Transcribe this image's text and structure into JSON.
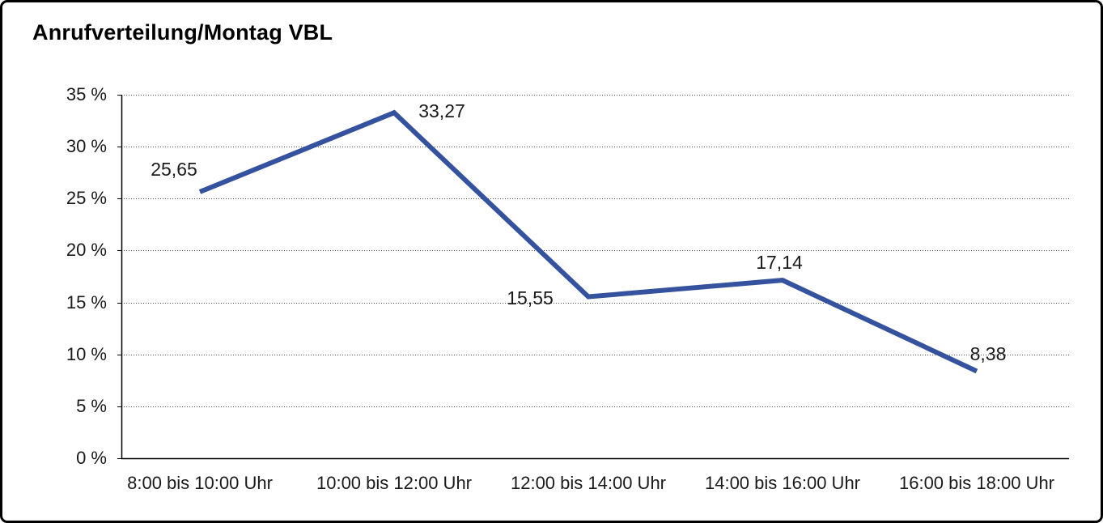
{
  "frame": {
    "title": "Anrufverteilung/Montag VBL"
  },
  "colors": {
    "line": "#35529E",
    "grid_dots": "#4d4d4d",
    "axis": "#000000",
    "text": "#1a1a1a",
    "frame_border": "#000000",
    "background": "#ffffff"
  },
  "chart_data": {
    "type": "line",
    "title": "Anrufverteilung/Montag VBL",
    "categories": [
      "8:00 bis 10:00 Uhr",
      "10:00 bis 12:00 Uhr",
      "12:00 bis 14:00 Uhr",
      "14:00 bis 16:00 Uhr",
      "16:00 bis 18:00 Uhr"
    ],
    "values": [
      25.65,
      33.27,
      15.55,
      17.14,
      8.38
    ],
    "value_labels": [
      "25,65",
      "33,27",
      "15,55",
      "17,14",
      "8,38"
    ],
    "y_ticks": [
      "35 %",
      "30 %",
      "25 %",
      "20 %",
      "15 %",
      "10 %",
      "5 %",
      "0 %"
    ],
    "y_tick_values": [
      35,
      30,
      25,
      20,
      15,
      10,
      5,
      0
    ],
    "ylim": [
      0,
      35
    ],
    "xlabel": "",
    "ylabel": "",
    "grid": "horizontal-dotted",
    "legend": "none"
  }
}
